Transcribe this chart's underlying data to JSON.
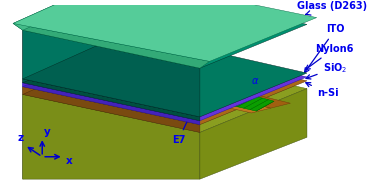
{
  "bg_color": "#ffffff",
  "label_color": "#0000ee",
  "arrow_color": "#0000cc",
  "colors": {
    "nsi_top": "#8a9e20",
    "nsi_left": "#6a7a12",
    "nsi_front": "#7a8e18",
    "sio2_top": "#aa6818",
    "sio2_front": "#7a4a10",
    "sio2_left": "#8a5412",
    "groove_l_wall": "#c07820",
    "groove_r_wall": "#a06010",
    "groove_floor": "#b87020",
    "green_fill": "#22cc00",
    "green_dark": "#008800",
    "green_line": "#00aa00",
    "ito_top": "#6633dd",
    "ito_front": "#4422bb",
    "ito_left": "#5528cc",
    "nylon_top": "#007a60",
    "nylon_front": "#005040",
    "nylon_left": "#006050",
    "glass_top": "#009070",
    "glass_front": "#006050",
    "glass_left": "#007560",
    "glass_body_top": "#007a65",
    "gplate_top": "#55cc99",
    "gplate_front": "#33aa77",
    "gplate_left": "#44bb88"
  },
  "labels": {
    "glass": "Glass (D263)",
    "ito": "ITO",
    "nylon": "Nylon6",
    "sio2": "SiO₂",
    "nsi": "n-Si",
    "e7": "E7"
  }
}
